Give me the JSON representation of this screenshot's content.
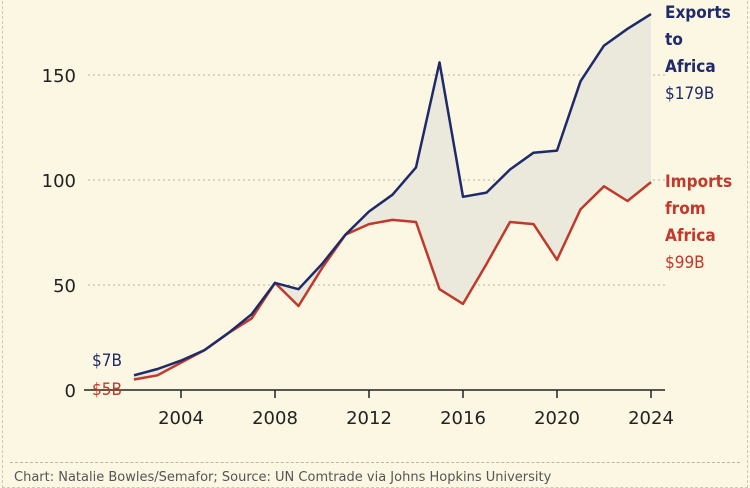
{
  "chart_data": {
    "type": "line",
    "x": [
      2002,
      2003,
      2004,
      2005,
      2006,
      2007,
      2008,
      2009,
      2010,
      2011,
      2012,
      2013,
      2014,
      2015,
      2016,
      2017,
      2018,
      2019,
      2020,
      2021,
      2022,
      2023,
      2024
    ],
    "series": [
      {
        "name": "Exports to Africa",
        "color": "#1f2a6b",
        "values": [
          7,
          10,
          14,
          19,
          27,
          36,
          51,
          48,
          60,
          74,
          85,
          93,
          106,
          156,
          92,
          94,
          105,
          113,
          114,
          147,
          164,
          172,
          179
        ]
      },
      {
        "name": "Imports from Africa",
        "color": "#c0392b",
        "values": [
          5,
          7,
          13,
          19,
          27,
          34,
          51,
          40,
          58,
          74,
          79,
          81,
          80,
          48,
          41,
          60,
          80,
          79,
          62,
          86,
          97,
          90,
          99
        ]
      }
    ],
    "shade_between_series": true,
    "shade_color": "#ebe8dc",
    "xticks": [
      "2004",
      "2008",
      "2012",
      "2016",
      "2020",
      "2024"
    ],
    "yticks": [
      "0",
      "50",
      "100",
      "150"
    ],
    "ylim": [
      0,
      185
    ],
    "xlim": [
      2002,
      2024
    ],
    "grid": "horizontal dotted",
    "labels": {
      "exports_start": "$7B",
      "imports_start": "$5B",
      "exports_line1": "Exports",
      "exports_line2": "to",
      "exports_line3": "Africa",
      "exports_end": "$179B",
      "imports_line1": "Imports",
      "imports_line2": "from",
      "imports_line3": "Africa",
      "imports_end": "$99B"
    }
  },
  "footer": "Chart: Natalie Bowles/Semafor; Source: UN Comtrade via Johns Hopkins University"
}
